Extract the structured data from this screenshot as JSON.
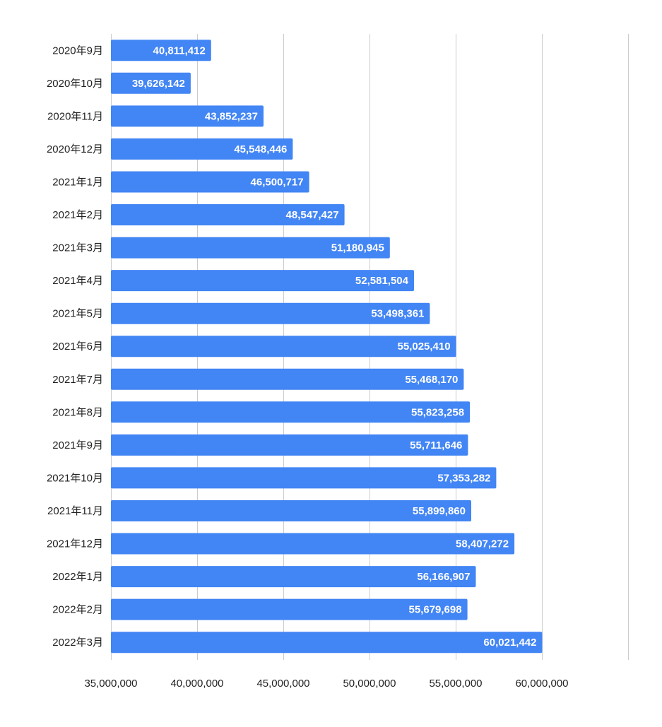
{
  "chart_data": {
    "type": "bar",
    "orientation": "horizontal",
    "categories": [
      "2020年9月",
      "2020年10月",
      "2020年11月",
      "2020年12月",
      "2021年1月",
      "2021年2月",
      "2021年3月",
      "2021年4月",
      "2021年5月",
      "2021年6月",
      "2021年7月",
      "2021年8月",
      "2021年9月",
      "2021年10月",
      "2021年11月",
      "2021年12月",
      "2022年1月",
      "2022年2月",
      "2022年3月"
    ],
    "values": [
      40811412,
      39626142,
      43852237,
      45548446,
      46500717,
      48547427,
      51180945,
      52581504,
      53498361,
      55025410,
      55468170,
      55823258,
      55711646,
      57353282,
      55899860,
      58407272,
      56166907,
      55679698,
      60021442
    ],
    "data_labels": [
      "40,811,412",
      "39,626,142",
      "43,852,237",
      "45,548,446",
      "46,500,717",
      "48,547,427",
      "51,180,945",
      "52,581,504",
      "53,498,361",
      "55,025,410",
      "55,468,170",
      "55,823,258",
      "55,711,646",
      "57,353,282",
      "55,899,860",
      "58,407,272",
      "56,166,907",
      "55,679,698",
      "60,021,442"
    ],
    "xticks": [
      35000000,
      40000000,
      45000000,
      50000000,
      55000000,
      60000000
    ],
    "xtick_labels": [
      "35,000,000",
      "40,000,000",
      "45,000,000",
      "50,000,000",
      "55,000,000",
      "60,000,000"
    ],
    "xlim": [
      35000000,
      65000000
    ],
    "grid": true,
    "legend": "none",
    "title": "",
    "xlabel": "",
    "ylabel": "",
    "bar_color": "#4285f4",
    "label_color": "#ffffff"
  }
}
